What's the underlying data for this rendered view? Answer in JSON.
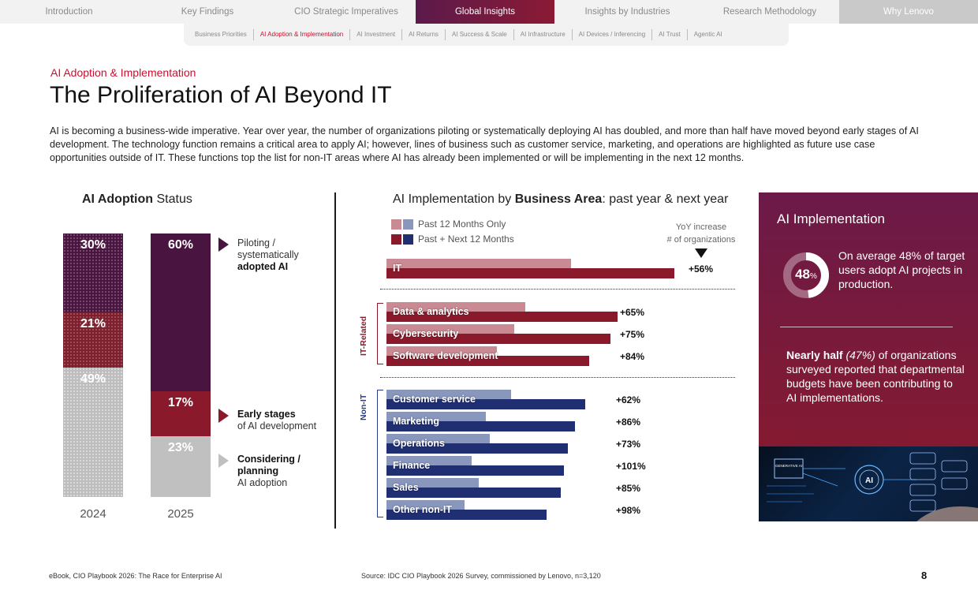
{
  "nav": {
    "tabs": [
      "Introduction",
      "Key Findings",
      "CIO Strategic Imperatives",
      "Global Insights",
      "Insights by Industries",
      "Research Methodology",
      "Why Lenovo"
    ],
    "active_tab": "Global Insights",
    "subtabs": [
      "Business Priorities",
      "AI Adoption & Implementation",
      "AI Investment",
      "AI Returns",
      "AI Success & Scale",
      "AI Infrastructure",
      "AI Devices / Inferencing",
      "AI Trust",
      "Agentic AI"
    ],
    "active_subtab": "AI Adoption & Implementation"
  },
  "header": {
    "eyebrow": "AI Adoption & Implementation",
    "title": "The Proliferation of AI Beyond IT",
    "intro": "AI is becoming a business-wide imperative. Year over year, the number of organizations piloting or systematically deploying AI has doubled, and more than half have moved beyond early stages of AI development. The technology function remains a critical area to apply AI; however, lines of business such as customer service, marketing, and operations are highlighted as future use case opportunities outside of IT.  These functions top the list for non-IT areas where AI has already been implemented or will be implementing in the next 12 months."
  },
  "adoption": {
    "title_bold": "AI Adoption",
    "title_rest": " Status",
    "legend": {
      "piloting_line1": "Piloting /",
      "piloting_line2": "systematically",
      "piloting_bold": "adopted AI",
      "early_bold": "Early stages",
      "early_rest": "of AI development",
      "considering_bold1": "Considering /",
      "considering_bold2": "planning",
      "considering_rest": "AI adoption"
    }
  },
  "implementation": {
    "title_pre": "AI Implementation by ",
    "title_bold": "Business Area",
    "title_post": ": past year & next year",
    "key_past": "Past 12 Months Only",
    "key_next": "Past + Next 12 Months",
    "yoy_head1": "YoY increase",
    "yoy_head2": "# of organizations",
    "group_it": "IT-Related",
    "group_nonit": "Non-IT"
  },
  "chart_data": [
    {
      "type": "bar",
      "title": "AI Adoption Status",
      "categories": [
        "2024",
        "2025"
      ],
      "series": [
        {
          "name": "Piloting / systematically adopted AI",
          "values": [
            30,
            60
          ]
        },
        {
          "name": "Early stages of AI development",
          "values": [
            21,
            17
          ]
        },
        {
          "name": "Considering / planning AI adoption",
          "values": [
            49,
            23
          ]
        }
      ],
      "labels": {
        "2024": [
          "30%",
          "21%",
          "49%"
        ],
        "2025": [
          "60%",
          "17%",
          "23%"
        ]
      },
      "colors": {
        "piloting": "#4a1440",
        "early": "#8a1a2b",
        "considering": "#c0c0c0"
      }
    },
    {
      "type": "bar",
      "title": "AI Implementation by Business Area: past year & next year",
      "series_names": [
        "Past 12 Months Only",
        "Past + Next 12 Months"
      ],
      "items": [
        {
          "label": "IT",
          "group": "top",
          "past": 52,
          "next": 81,
          "yoy": "+56%",
          "color": "red"
        },
        {
          "label": "Data & analytics",
          "group": "IT-Related",
          "past": 39,
          "next": 65,
          "yoy": "+65%",
          "color": "red"
        },
        {
          "label": "Cybersecurity",
          "group": "IT-Related",
          "past": 36,
          "next": 63,
          "yoy": "+75%",
          "color": "red"
        },
        {
          "label": "Software development",
          "group": "IT-Related",
          "past": 31,
          "next": 57,
          "yoy": "+84%",
          "color": "red"
        },
        {
          "label": "Customer service",
          "group": "Non-IT",
          "past": 35,
          "next": 56,
          "yoy": "+62%",
          "color": "blue"
        },
        {
          "label": "Marketing",
          "group": "Non-IT",
          "past": 28,
          "next": 53,
          "yoy": "+86%",
          "color": "blue"
        },
        {
          "label": "Operations",
          "group": "Non-IT",
          "past": 29,
          "next": 51,
          "yoy": "+73%",
          "color": "blue"
        },
        {
          "label": "Finance",
          "group": "Non-IT",
          "past": 24,
          "next": 50,
          "yoy": "+101%",
          "color": "blue"
        },
        {
          "label": "Sales",
          "group": "Non-IT",
          "past": 26,
          "next": 49,
          "yoy": "+85%",
          "color": "blue"
        },
        {
          "label": "Other non-IT",
          "group": "Non-IT",
          "past": 22,
          "next": 45,
          "yoy": "+98%",
          "color": "blue"
        }
      ],
      "colors": {
        "red_light": "#c98a93",
        "red_dark": "#8a1a2b",
        "blue_light": "#8a97bc",
        "blue_dark": "#1f2f72"
      }
    }
  ],
  "panel": {
    "title": "AI Implementation",
    "donut_value": 48,
    "donut_text": "48",
    "donut_unit": "%",
    "stat1": "On average 48% of target users adopt AI projects in production.",
    "stat2_bold": "Nearly half",
    "stat2_italic": "(47%)",
    "stat2_rest": " of organizations surveyed reported that departmental budgets have been contributing to AI implementations.",
    "image_text": "GENERATIVE AI",
    "image_text2": "AI"
  },
  "footer": {
    "left": "eBook, CIO Playbook 2026: The Race for Enterprise AI",
    "source": "Source: IDC CIO Playbook 2026 Survey, commissioned by Lenovo, n=3,120",
    "page": "8"
  }
}
